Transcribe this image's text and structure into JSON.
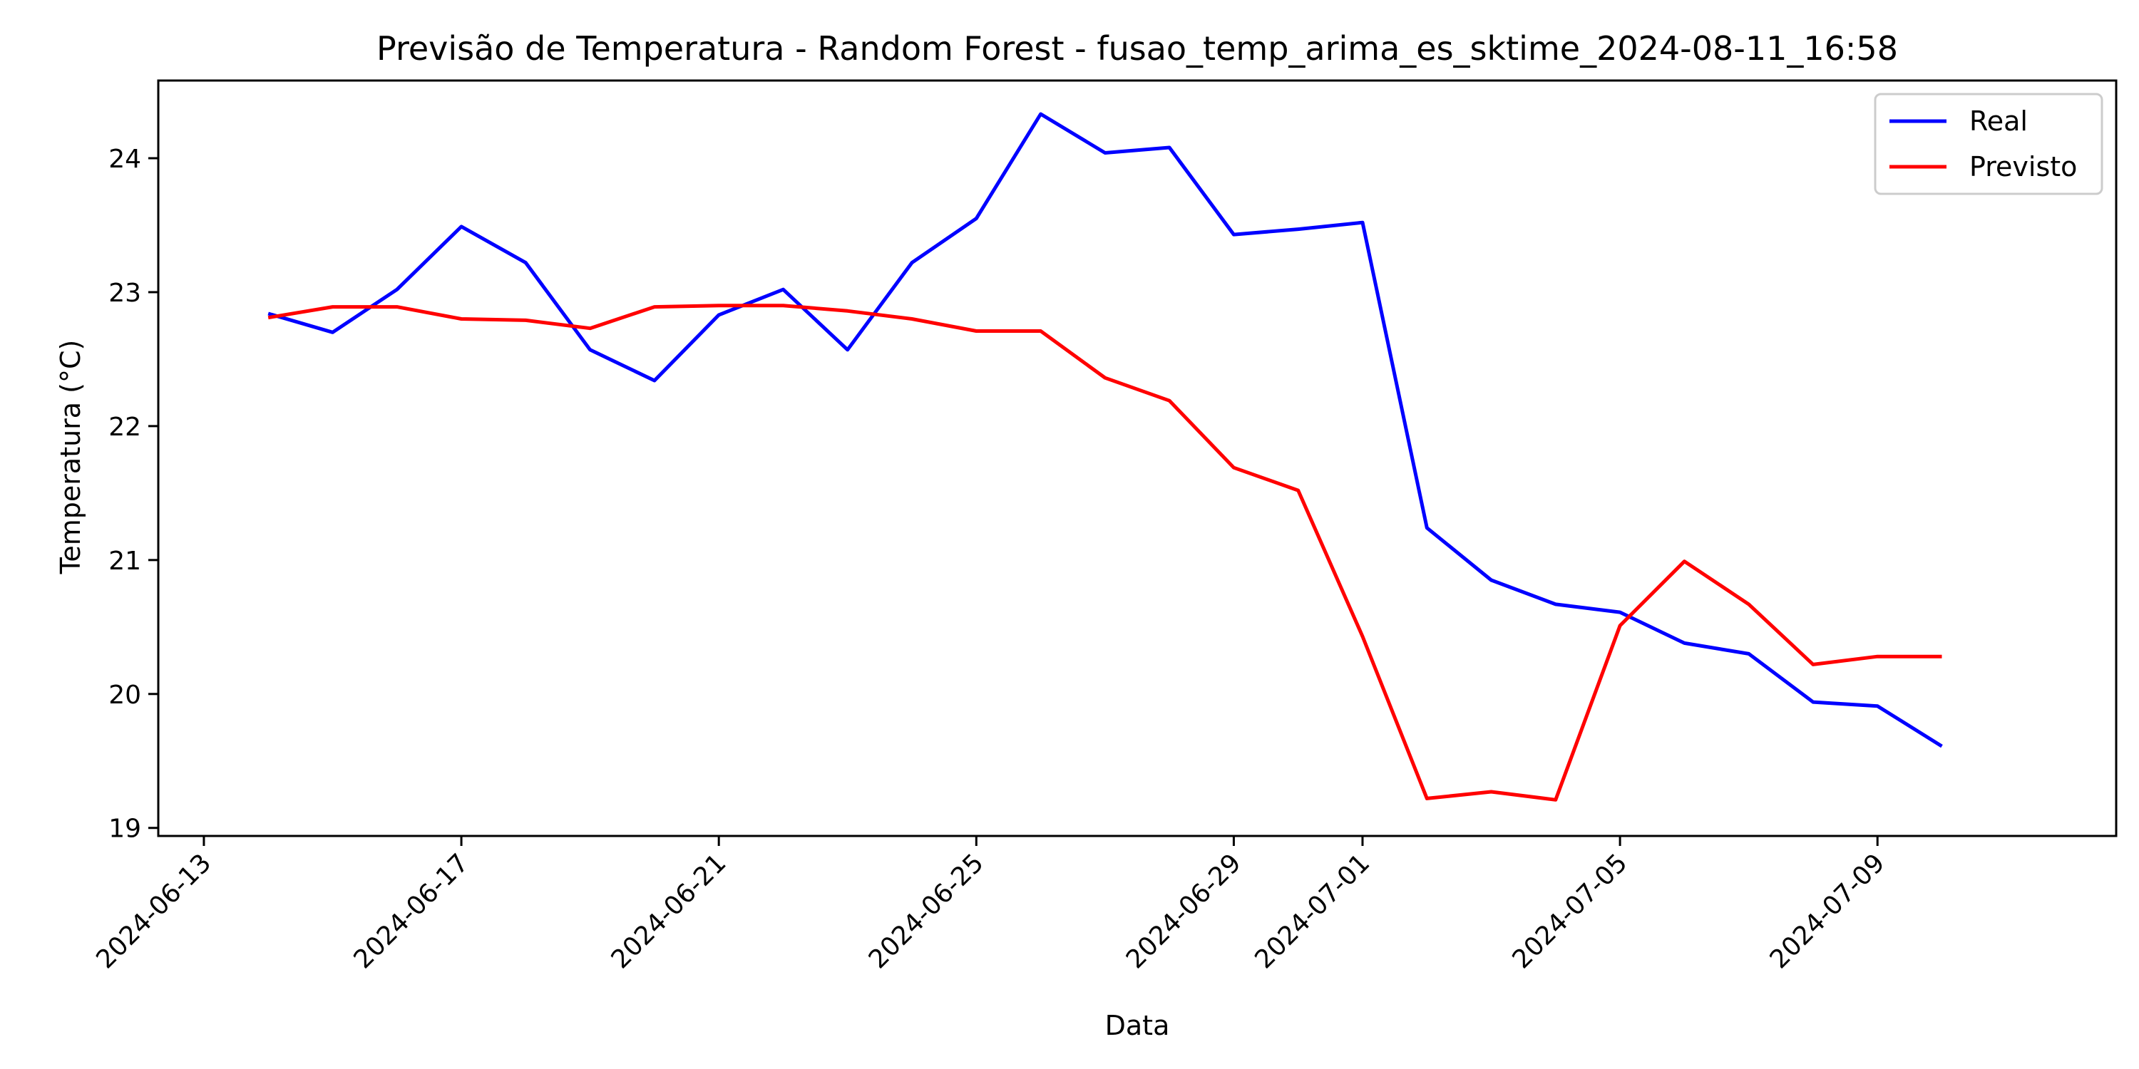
{
  "chart_data": {
    "type": "line",
    "title": "Previsão de Temperatura - Random Forest - fusao_temp_arima_es_sktime_2024-08-11_16:58",
    "xlabel": "Data",
    "ylabel": "Temperatura (°C)",
    "xlim": [
      "2024-06-12T07:00",
      "2024-07-12T17:00"
    ],
    "ylim": [
      18.94,
      24.58
    ],
    "x_ticks": [
      "2024-06-13",
      "2024-06-17",
      "2024-06-21",
      "2024-06-25",
      "2024-06-29",
      "2024-07-01",
      "2024-07-05",
      "2024-07-09"
    ],
    "y_ticks": [
      19,
      20,
      21,
      22,
      23,
      24
    ],
    "x": [
      "2024-06-14",
      "2024-06-15",
      "2024-06-16",
      "2024-06-17",
      "2024-06-18",
      "2024-06-19",
      "2024-06-20",
      "2024-06-21",
      "2024-06-22",
      "2024-06-23",
      "2024-06-24",
      "2024-06-25",
      "2024-06-26",
      "2024-06-27",
      "2024-06-28",
      "2024-06-29",
      "2024-06-30",
      "2024-07-01",
      "2024-07-02",
      "2024-07-03",
      "2024-07-04",
      "2024-07-05",
      "2024-07-06",
      "2024-07-07",
      "2024-07-08",
      "2024-07-09",
      "2024-07-10"
    ],
    "series": [
      {
        "name": "Real",
        "color": "#0000ff",
        "values": [
          22.84,
          22.7,
          23.02,
          23.49,
          23.22,
          22.57,
          22.34,
          22.83,
          23.02,
          22.57,
          23.22,
          23.55,
          24.33,
          24.04,
          24.08,
          23.43,
          23.47,
          23.52,
          21.24,
          20.85,
          20.67,
          20.61,
          20.38,
          20.3,
          19.94,
          19.91,
          19.61
        ]
      },
      {
        "name": "Previsto",
        "color": "#ff0000",
        "values": [
          22.81,
          22.89,
          22.89,
          22.8,
          22.79,
          22.73,
          22.89,
          22.9,
          22.9,
          22.86,
          22.8,
          22.71,
          22.71,
          22.36,
          22.19,
          21.69,
          21.52,
          20.43,
          19.22,
          19.27,
          19.21,
          20.51,
          20.99,
          20.67,
          20.22,
          20.28,
          20.28
        ]
      }
    ],
    "legend": "top-right",
    "grid": false
  }
}
